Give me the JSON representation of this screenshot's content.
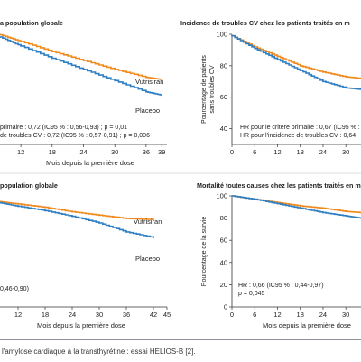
{
  "caption": "l'amylose cardiaque à la transthyrétine : essai HELIOS-B [2].",
  "colors": {
    "vutrisiran": "#f08a1c",
    "placebo": "#2f7fc4",
    "axis": "#333333",
    "text": "#222222"
  },
  "chart_data": [
    {
      "type": "line",
      "title": "a population globale",
      "xlabel": "Mois depuis la première dose",
      "ylabel": "",
      "x_ticks": [
        "12",
        "18",
        "24",
        "30",
        "36",
        "39"
      ],
      "xlim": [
        8,
        40
      ],
      "ylim": [
        0,
        100
      ],
      "series": [
        {
          "name": "Vutrisiran",
          "x": [
            8,
            12,
            18,
            24,
            30,
            36,
            39
          ],
          "y": [
            98,
            92,
            83,
            75,
            67,
            60,
            58
          ]
        },
        {
          "name": "Placebo",
          "x": [
            8,
            12,
            18,
            24,
            30,
            36,
            39
          ],
          "y": [
            96,
            88,
            77,
            67,
            57,
            47,
            44
          ]
        }
      ],
      "annotations": [
        "primaire : 0,72 (IC95 % : 0,56-0,93) ; p = 0,01",
        "de troubles CV : 0,72 (IC95 % : 0,57-0,91) ; p = 0,006"
      ]
    },
    {
      "type": "line",
      "title": "Incidence de troubles CV chez les patients traités en m",
      "xlabel": "",
      "ylabel": "Pourcentage de patients sans troubles CV",
      "y_ticks": [
        "100",
        "80",
        "60",
        "40"
      ],
      "x_ticks": [
        "0",
        "6",
        "12",
        "18",
        "24",
        "30"
      ],
      "xlim": [
        0,
        34
      ],
      "ylim": [
        30,
        100
      ],
      "series": [
        {
          "name": "Vutrisiran",
          "x": [
            0,
            6,
            12,
            18,
            24,
            30,
            34
          ],
          "y": [
            99,
            92,
            86,
            80,
            76,
            73,
            72
          ]
        },
        {
          "name": "Placebo",
          "x": [
            0,
            6,
            12,
            18,
            24,
            30,
            34
          ],
          "y": [
            99,
            91,
            84,
            77,
            70,
            66,
            65
          ]
        }
      ],
      "annotations": [
        "HR pour le critère primaire : 0,67 (IC95 % :",
        "HR pour l'incidence de troubles CV : 0,64"
      ]
    },
    {
      "type": "line",
      "title": "population globale",
      "xlabel": "Mois depuis la première dose",
      "ylabel": "",
      "x_ticks": [
        "12",
        "18",
        "24",
        "30",
        "36",
        "42",
        "45"
      ],
      "xlim": [
        8,
        45
      ],
      "ylim": [
        0,
        100
      ],
      "series": [
        {
          "name": "Vutrisiran",
          "x": [
            8,
            12,
            18,
            24,
            30,
            36,
            42
          ],
          "y": [
            94,
            92,
            89,
            85,
            82,
            79,
            78
          ]
        },
        {
          "name": "Placebo",
          "x": [
            8,
            12,
            18,
            24,
            30,
            36,
            42
          ],
          "y": [
            93,
            90,
            86,
            81,
            75,
            67,
            62
          ]
        }
      ],
      "annotations": [
        "0,46-0,90)"
      ]
    },
    {
      "type": "line",
      "title": "Mortalité toutes causes chez les patients traités en mo",
      "xlabel": "Mois depuis la première dose",
      "ylabel": "Pourcentage de la survie",
      "y_ticks": [
        "100",
        "80",
        "60",
        "40",
        "20",
        "0"
      ],
      "x_ticks": [
        "0",
        "6",
        "12",
        "18",
        "24",
        "30"
      ],
      "xlim": [
        0,
        34
      ],
      "ylim": [
        0,
        100
      ],
      "series": [
        {
          "name": "Vutrisiran",
          "x": [
            0,
            6,
            12,
            18,
            24,
            30,
            34
          ],
          "y": [
            100,
            97,
            94,
            91,
            89,
            86,
            85
          ]
        },
        {
          "name": "Placebo",
          "x": [
            0,
            6,
            12,
            18,
            24,
            30,
            34
          ],
          "y": [
            100,
            97,
            93,
            89,
            85,
            82,
            80
          ]
        }
      ],
      "annotations": [
        "HR : 0,66 (IC95 % : 0,44-0,97)",
        "p = 0,045"
      ]
    }
  ]
}
